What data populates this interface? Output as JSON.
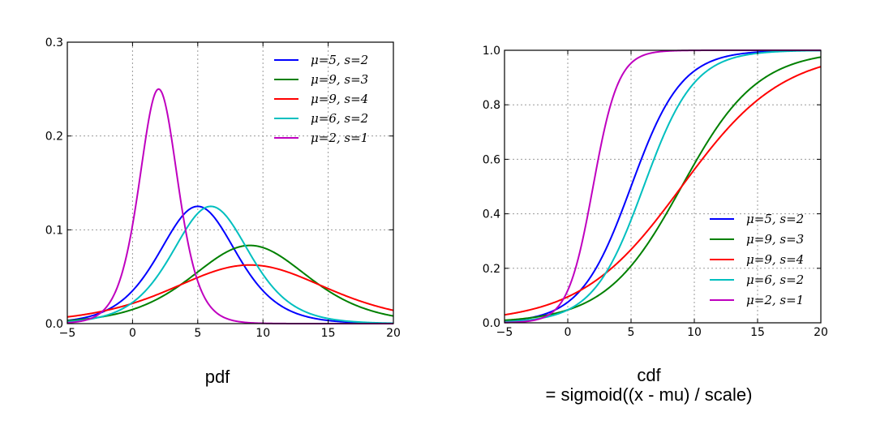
{
  "charts": [
    {
      "chart_data": {
        "type": "line",
        "kind": "pdf",
        "xlim": [
          -5,
          20
        ],
        "ylim": [
          0,
          0.3
        ],
        "xticks": [
          -5,
          0,
          5,
          10,
          15,
          20
        ],
        "yticks": [
          0.0,
          0.1,
          0.2,
          0.3
        ],
        "xtick_labels": [
          "−5",
          "0",
          "5",
          "10",
          "15",
          "20"
        ],
        "ytick_labels": [
          "0.0",
          "0.1",
          "0.2",
          "0.3"
        ],
        "grid": true,
        "legend_position": "top-right",
        "series": [
          {
            "name": "μ=5, s=2",
            "mu": 5,
            "s": 2,
            "color": "#0000ff"
          },
          {
            "name": "μ=9, s=3",
            "mu": 9,
            "s": 3,
            "color": "#008000"
          },
          {
            "name": "μ=9, s=4",
            "mu": 9,
            "s": 4,
            "color": "#ff0000"
          },
          {
            "name": "μ=6, s=2",
            "mu": 6,
            "s": 2,
            "color": "#00bfbf"
          },
          {
            "name": "μ=2, s=1",
            "mu": 2,
            "s": 1,
            "color": "#bf00bf"
          }
        ]
      },
      "caption": [
        "pdf"
      ]
    },
    {
      "chart_data": {
        "type": "line",
        "kind": "cdf",
        "xlim": [
          -5,
          20
        ],
        "ylim": [
          0,
          1.0
        ],
        "xticks": [
          -5,
          0,
          5,
          10,
          15,
          20
        ],
        "yticks": [
          0.0,
          0.2,
          0.4,
          0.6,
          0.8,
          1.0
        ],
        "xtick_labels": [
          "−5",
          "0",
          "5",
          "10",
          "15",
          "20"
        ],
        "ytick_labels": [
          "0.0",
          "0.2",
          "0.4",
          "0.6",
          "0.8",
          "1.0"
        ],
        "grid": true,
        "legend_position": "bottom-right",
        "series": [
          {
            "name": "μ=5, s=2",
            "mu": 5,
            "s": 2,
            "color": "#0000ff"
          },
          {
            "name": "μ=9, s=3",
            "mu": 9,
            "s": 3,
            "color": "#008000"
          },
          {
            "name": "μ=9, s=4",
            "mu": 9,
            "s": 4,
            "color": "#ff0000"
          },
          {
            "name": "μ=6, s=2",
            "mu": 6,
            "s": 2,
            "color": "#00bfbf"
          },
          {
            "name": "μ=2, s=1",
            "mu": 2,
            "s": 1,
            "color": "#bf00bf"
          }
        ]
      },
      "caption": [
        "cdf",
        "= sigmoid((x - mu) / scale)"
      ]
    }
  ]
}
